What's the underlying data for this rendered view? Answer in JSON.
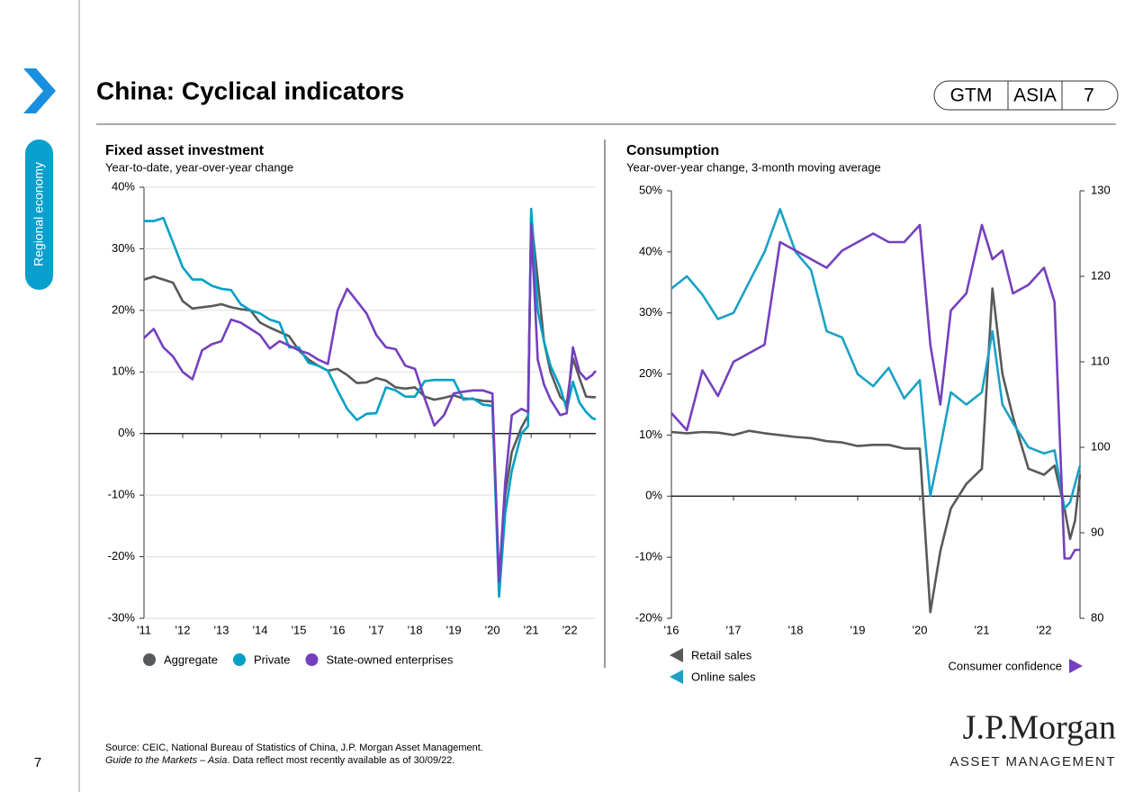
{
  "header": {
    "title": "China: Cyclical indicators",
    "badge": [
      "GTM",
      "ASIA",
      "7"
    ]
  },
  "sidebar": {
    "section": "Regional economy",
    "page_number": "7"
  },
  "footer": {
    "source": "Source: CEIC, National Bureau of Statistics of China, J.P. Morgan Asset Management.",
    "guide": "Guide to the Markets – Asia",
    "note": ". Data reflect most recently available as of 30/09/22.",
    "logo": "J.P.Morgan",
    "logo_sub": "ASSET MANAGEMENT"
  },
  "chart_data": [
    {
      "type": "line",
      "title": "Fixed asset investment",
      "subtitle": "Year-to-date, year-over-year change",
      "grid": true,
      "x": [
        2011,
        2011.25,
        2011.5,
        2011.75,
        2012,
        2012.25,
        2012.5,
        2012.75,
        2013,
        2013.25,
        2013.5,
        2013.75,
        2014,
        2014.25,
        2014.5,
        2014.75,
        2015,
        2015.25,
        2015.5,
        2015.75,
        2016,
        2016.25,
        2016.5,
        2016.75,
        2017,
        2017.25,
        2017.5,
        2017.75,
        2018,
        2018.25,
        2018.5,
        2018.75,
        2019,
        2019.25,
        2019.5,
        2019.75,
        2020,
        2020.17,
        2020.33,
        2020.5,
        2020.75,
        2020.92,
        2021,
        2021.17,
        2021.33,
        2021.5,
        2021.75,
        2021.92,
        2022.08,
        2022.25,
        2022.42,
        2022.58,
        2022.67
      ],
      "series": [
        {
          "name": "Aggregate",
          "color": "#58595b",
          "values": [
            25,
            25.5,
            25,
            24.5,
            21.5,
            20.3,
            20.5,
            20.7,
            21,
            20.5,
            20.2,
            20,
            18,
            17.2,
            16.5,
            15.8,
            13.5,
            12,
            11,
            10.2,
            10.5,
            9.5,
            8.2,
            8.3,
            9,
            8.6,
            7.5,
            7.3,
            7.5,
            6,
            5.5,
            5.8,
            6.2,
            5.7,
            5.6,
            5.3,
            5.2,
            -24.5,
            -10,
            -3,
            1,
            2.9,
            35,
            25,
            15,
            10,
            6,
            4.9,
            12.2,
            9,
            6,
            5.9,
            5.9
          ]
        },
        {
          "name": "Private",
          "color": "#00a0c6",
          "values": [
            34.5,
            34.5,
            35,
            31,
            27,
            25,
            25,
            24,
            23.5,
            23.3,
            21,
            20,
            19.5,
            18.5,
            18,
            14,
            14,
            11.5,
            11,
            10.2,
            7,
            4,
            2.2,
            3.2,
            3.3,
            7.5,
            7,
            6,
            6,
            8.5,
            8.7,
            8.7,
            8.7,
            5.5,
            5.7,
            4.7,
            4.5,
            -26.5,
            -13,
            -6,
            0,
            1.2,
            36.5,
            20,
            15,
            11,
            7.5,
            3.9,
            8.4,
            5,
            3.5,
            2.5,
            2.3
          ]
        },
        {
          "name": "State-owned enterprises",
          "color": "#7440be",
          "values": [
            15.5,
            17,
            14,
            12.5,
            10,
            8.8,
            13.5,
            14.5,
            15,
            18.5,
            18,
            17,
            16,
            13.8,
            15,
            14.3,
            13.5,
            13,
            12,
            11.3,
            20,
            23.5,
            21.5,
            19.5,
            16,
            14,
            13.7,
            11,
            10.5,
            5.7,
            1.3,
            3,
            6.5,
            6.8,
            7,
            7,
            6.5,
            -24,
            -8,
            3,
            4,
            3.5,
            34,
            12,
            8,
            5.5,
            3,
            3.3,
            14,
            10,
            8.8,
            9.5,
            10.2
          ]
        }
      ],
      "xlim": [
        2011,
        2022.67
      ],
      "xticks": [
        {
          "value": 2011,
          "label": "'11"
        },
        {
          "value": 2012,
          "label": "'12"
        },
        {
          "value": 2013,
          "label": "'13"
        },
        {
          "value": 2014,
          "label": "'14"
        },
        {
          "value": 2015,
          "label": "'15"
        },
        {
          "value": 2016,
          "label": "'16"
        },
        {
          "value": 2017,
          "label": "'17"
        },
        {
          "value": 2018,
          "label": "'18"
        },
        {
          "value": 2019,
          "label": "'19"
        },
        {
          "value": 2020,
          "label": "'20"
        },
        {
          "value": 2021,
          "label": "'21"
        },
        {
          "value": 2022,
          "label": "'22"
        }
      ],
      "ylim": [
        -30,
        40
      ],
      "yticks": [
        {
          "value": -30,
          "label": "-30%"
        },
        {
          "value": -20,
          "label": "-20%"
        },
        {
          "value": -10,
          "label": "-10%"
        },
        {
          "value": 0,
          "label": "0%"
        },
        {
          "value": 10,
          "label": "10%"
        },
        {
          "value": 20,
          "label": "20%"
        },
        {
          "value": 30,
          "label": "30%"
        },
        {
          "value": 40,
          "label": "40%"
        }
      ]
    },
    {
      "type": "line",
      "title": "Consumption",
      "subtitle": "Year-over-year change, 3-month moving average",
      "grid": false,
      "x": [
        2016,
        2016.25,
        2016.5,
        2016.75,
        2017,
        2017.25,
        2017.5,
        2017.75,
        2018,
        2018.25,
        2018.5,
        2018.75,
        2019,
        2019.25,
        2019.5,
        2019.75,
        2020,
        2020.17,
        2020.33,
        2020.5,
        2020.75,
        2021,
        2021.17,
        2021.33,
        2021.5,
        2021.75,
        2022,
        2022.17,
        2022.33,
        2022.42,
        2022.5,
        2022.58
      ],
      "series": [
        {
          "name": "Retail sales",
          "color": "#58595b",
          "values": [
            10.5,
            10.3,
            10.5,
            10.4,
            10,
            10.7,
            10.3,
            10,
            9.7,
            9.5,
            9,
            8.8,
            8.2,
            8.4,
            8.4,
            7.8,
            7.8,
            -19,
            -9,
            -2,
            2,
            4.5,
            34,
            20,
            13,
            4.5,
            3.5,
            5,
            -2,
            -7,
            -4,
            3.5
          ]
        },
        {
          "name": "Online sales",
          "color": "#1ba1c5",
          "values": [
            34,
            36,
            33,
            29,
            30,
            35,
            40,
            47,
            40,
            37,
            27,
            26,
            20,
            18,
            21,
            16,
            19,
            0,
            8,
            17,
            15,
            17,
            27,
            15,
            12,
            8,
            7,
            7.5,
            -2,
            -1,
            2,
            5
          ]
        },
        {
          "name": "Consumer confidence",
          "color": "#7440be",
          "axis": "y2",
          "values": [
            104,
            102,
            109,
            106,
            110,
            111,
            112,
            124,
            123,
            122,
            121,
            123,
            124,
            125,
            124,
            124,
            126,
            112,
            105,
            116,
            118,
            126,
            122,
            123,
            118,
            119,
            121,
            117,
            87,
            87,
            88,
            88
          ]
        }
      ],
      "xlim": [
        2016,
        2022.58
      ],
      "xticks": [
        {
          "value": 2016,
          "label": "'16"
        },
        {
          "value": 2017,
          "label": "'17"
        },
        {
          "value": 2018,
          "label": "'18"
        },
        {
          "value": 2019,
          "label": "'19"
        },
        {
          "value": 2020,
          "label": "'20"
        },
        {
          "value": 2021,
          "label": "'21"
        },
        {
          "value": 2022,
          "label": "'22"
        }
      ],
      "ylim": [
        -20,
        50
      ],
      "yticks": [
        {
          "value": -20,
          "label": "-20%"
        },
        {
          "value": -10,
          "label": "-10%"
        },
        {
          "value": 0,
          "label": "0%"
        },
        {
          "value": 10,
          "label": "10%"
        },
        {
          "value": 20,
          "label": "20%"
        },
        {
          "value": 30,
          "label": "30%"
        },
        {
          "value": 40,
          "label": "40%"
        },
        {
          "value": 50,
          "label": "50%"
        }
      ],
      "y2lim": [
        80,
        130
      ],
      "y2ticks": [
        80,
        90,
        100,
        110,
        120,
        130
      ]
    }
  ]
}
